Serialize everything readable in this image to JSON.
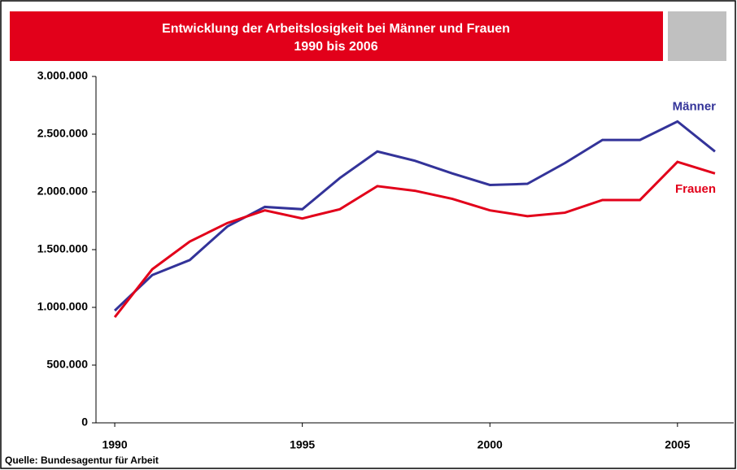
{
  "chart_data": {
    "type": "line",
    "title": "Entwicklung der Arbeitslosigkeit bei Männer und Frauen",
    "subtitle": "1990 bis 2006",
    "source": "Quelle: Bundesagentur für Arbeit",
    "x": [
      1990,
      1991,
      1992,
      1993,
      1994,
      1995,
      1996,
      1997,
      1998,
      1999,
      2000,
      2001,
      2002,
      2003,
      2004,
      2005,
      2006
    ],
    "series": [
      {
        "name": "Männer",
        "color": "#333399",
        "values": [
          972000,
          1280000,
          1410000,
          1700000,
          1870000,
          1850000,
          2120000,
          2350000,
          2270000,
          2160000,
          2060000,
          2070000,
          2250000,
          2450000,
          2450000,
          2610000,
          2350000
        ]
      },
      {
        "name": "Frauen",
        "color": "#e2001a",
        "values": [
          915000,
          1330000,
          1570000,
          1730000,
          1840000,
          1770000,
          1850000,
          2050000,
          2010000,
          1940000,
          1840000,
          1790000,
          1820000,
          1930000,
          1930000,
          2260000,
          2160000
        ]
      }
    ],
    "xlim": [
      1989.5,
      2006.5
    ],
    "xticks": [
      1990,
      1995,
      2000,
      2005
    ],
    "ylim": [
      0,
      3000000
    ],
    "yticks": [
      0,
      {
        "value": 500000,
        "label": "500.000"
      },
      {
        "value": 1000000,
        "label": "1.000.000"
      },
      {
        "value": 1500000,
        "label": "1.500.000"
      },
      {
        "value": 2000000,
        "label": "2.000.000"
      },
      {
        "value": 2500000,
        "label": "2.500.000"
      },
      {
        "value": 3000000,
        "label": "3.000.000"
      }
    ],
    "grid": false
  }
}
